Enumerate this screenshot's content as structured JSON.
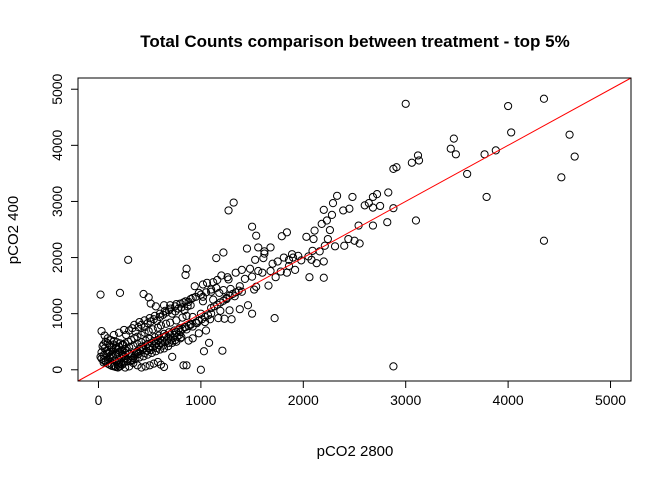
{
  "chart_data": {
    "type": "scatter",
    "title": "Total Counts comparison between treatment - top 5%",
    "xlabel": "pCO2 2800",
    "ylabel": "pCO2 400",
    "xlim": [
      -200,
      5200
    ],
    "ylim": [
      -200,
      5200
    ],
    "x_ticks": [
      "0",
      "1000",
      "2000",
      "3000",
      "4000",
      "5000"
    ],
    "y_ticks": [
      "0",
      "1000",
      "2000",
      "3000",
      "4000",
      "5000"
    ],
    "grid": false,
    "legend": "none",
    "point_color": "#000000",
    "reference_line": {
      "intercept": 0,
      "slope": 1,
      "color": "#ff0000"
    },
    "points": [
      [
        4350,
        4830
      ],
      [
        4000,
        4700
      ],
      [
        3000,
        4740
      ],
      [
        4600,
        4190
      ],
      [
        4030,
        4230
      ],
      [
        3470,
        4120
      ],
      [
        3880,
        3910
      ],
      [
        3770,
        3840
      ],
      [
        3490,
        3840
      ],
      [
        4650,
        3800
      ],
      [
        3440,
        3940
      ],
      [
        3120,
        3820
      ],
      [
        3130,
        3730
      ],
      [
        3060,
        3690
      ],
      [
        2910,
        3610
      ],
      [
        2880,
        3580
      ],
      [
        3600,
        3490
      ],
      [
        4520,
        3430
      ],
      [
        2830,
        3160
      ],
      [
        2720,
        3130
      ],
      [
        2680,
        3080
      ],
      [
        2480,
        3080
      ],
      [
        2330,
        3100
      ],
      [
        2290,
        2970
      ],
      [
        2640,
        2970
      ],
      [
        2600,
        2930
      ],
      [
        2680,
        2890
      ],
      [
        2750,
        2920
      ],
      [
        3790,
        3080
      ],
      [
        2880,
        2880
      ],
      [
        2450,
        2870
      ],
      [
        2280,
        2760
      ],
      [
        2200,
        2850
      ],
      [
        2390,
        2840
      ],
      [
        1320,
        2980
      ],
      [
        1270,
        2840
      ],
      [
        2230,
        2660
      ],
      [
        3100,
        2660
      ],
      [
        2820,
        2630
      ],
      [
        2680,
        2570
      ],
      [
        2540,
        2570
      ],
      [
        2180,
        2600
      ],
      [
        2260,
        2490
      ],
      [
        2110,
        2480
      ],
      [
        1500,
        2550
      ],
      [
        1540,
        2390
      ],
      [
        1840,
        2450
      ],
      [
        2240,
        2330
      ],
      [
        2100,
        2330
      ],
      [
        2030,
        2370
      ],
      [
        1790,
        2380
      ],
      [
        2500,
        2300
      ],
      [
        2400,
        2210
      ],
      [
        2440,
        2330
      ],
      [
        4350,
        2300
      ],
      [
        2550,
        2250
      ],
      [
        1680,
        2180
      ],
      [
        1560,
        2180
      ],
      [
        1450,
        2160
      ],
      [
        2310,
        2200
      ],
      [
        2210,
        2210
      ],
      [
        2090,
        2120
      ],
      [
        1620,
        2110
      ],
      [
        2160,
        2110
      ],
      [
        1890,
        2060
      ],
      [
        1810,
        2000
      ],
      [
        1900,
        2000
      ],
      [
        1860,
        1960
      ],
      [
        1950,
        2030
      ],
      [
        2050,
        2020
      ],
      [
        2080,
        1960
      ],
      [
        1980,
        1950
      ],
      [
        2200,
        1930
      ],
      [
        2130,
        1900
      ],
      [
        1220,
        2090
      ],
      [
        1150,
        1990
      ],
      [
        1620,
        2070
      ],
      [
        1610,
        1990
      ],
      [
        1530,
        1960
      ],
      [
        1750,
        1930
      ],
      [
        1700,
        1890
      ],
      [
        1680,
        1760
      ],
      [
        1860,
        1850
      ],
      [
        1920,
        1780
      ],
      [
        1840,
        1730
      ],
      [
        1780,
        1750
      ],
      [
        1600,
        1730
      ],
      [
        1560,
        1760
      ],
      [
        1480,
        1800
      ],
      [
        1400,
        1780
      ],
      [
        1340,
        1730
      ],
      [
        1260,
        1650
      ],
      [
        1200,
        1680
      ],
      [
        1160,
        1600
      ],
      [
        2200,
        1640
      ],
      [
        2060,
        1650
      ],
      [
        1730,
        1650
      ],
      [
        1500,
        1660
      ],
      [
        1430,
        1620
      ],
      [
        1270,
        1610
      ],
      [
        1120,
        1560
      ],
      [
        1060,
        1550
      ],
      [
        1020,
        1520
      ],
      [
        940,
        1490
      ],
      [
        860,
        1800
      ],
      [
        850,
        1690
      ],
      [
        980,
        1370
      ],
      [
        1660,
        1500
      ],
      [
        1540,
        1480
      ],
      [
        1380,
        1490
      ],
      [
        1290,
        1440
      ],
      [
        1220,
        1420
      ],
      [
        1180,
        1370
      ],
      [
        1100,
        1390
      ],
      [
        1020,
        1300
      ],
      [
        1520,
        1430
      ],
      [
        1400,
        1390
      ],
      [
        1330,
        1310
      ],
      [
        1250,
        1260
      ],
      [
        1120,
        1250
      ],
      [
        1020,
        1220
      ],
      [
        920,
        1280
      ],
      [
        880,
        1210
      ],
      [
        830,
        1200
      ],
      [
        760,
        1170
      ],
      [
        700,
        1150
      ],
      [
        640,
        1150
      ],
      [
        440,
        1350
      ],
      [
        490,
        1290
      ],
      [
        510,
        1180
      ],
      [
        560,
        1130
      ],
      [
        290,
        1960
      ],
      [
        20,
        1340
      ],
      [
        210,
        1370
      ],
      [
        1460,
        1150
      ],
      [
        1380,
        1080
      ],
      [
        1280,
        1060
      ],
      [
        1190,
        1050
      ],
      [
        1100,
        1000
      ],
      [
        1000,
        1000
      ],
      [
        920,
        940
      ],
      [
        860,
        960
      ],
      [
        820,
        930
      ],
      [
        760,
        880
      ],
      [
        700,
        840
      ],
      [
        660,
        820
      ],
      [
        610,
        790
      ],
      [
        580,
        750
      ],
      [
        530,
        720
      ],
      [
        490,
        690
      ],
      [
        450,
        660
      ],
      [
        420,
        620
      ],
      [
        380,
        590
      ],
      [
        350,
        560
      ],
      [
        320,
        530
      ],
      [
        290,
        500
      ],
      [
        260,
        470
      ],
      [
        230,
        440
      ],
      [
        200,
        410
      ],
      [
        170,
        380
      ],
      [
        140,
        350
      ],
      [
        110,
        320
      ],
      [
        80,
        290
      ],
      [
        50,
        260
      ],
      [
        20,
        230
      ],
      [
        1230,
        910
      ],
      [
        1300,
        900
      ],
      [
        1170,
        920
      ],
      [
        1090,
        900
      ],
      [
        1040,
        850
      ],
      [
        960,
        830
      ],
      [
        900,
        800
      ],
      [
        850,
        760
      ],
      [
        790,
        740
      ],
      [
        740,
        700
      ],
      [
        690,
        670
      ],
      [
        640,
        640
      ],
      [
        590,
        610
      ],
      [
        550,
        580
      ],
      [
        500,
        550
      ],
      [
        460,
        520
      ],
      [
        420,
        490
      ],
      [
        380,
        460
      ],
      [
        340,
        430
      ],
      [
        300,
        400
      ],
      [
        260,
        370
      ],
      [
        230,
        340
      ],
      [
        200,
        310
      ],
      [
        170,
        280
      ],
      [
        140,
        250
      ],
      [
        110,
        220
      ],
      [
        90,
        190
      ],
      [
        70,
        160
      ],
      [
        50,
        130
      ],
      [
        1720,
        920
      ],
      [
        1500,
        1000
      ],
      [
        1050,
        700
      ],
      [
        980,
        650
      ],
      [
        920,
        560
      ],
      [
        880,
        520
      ],
      [
        800,
        560
      ],
      [
        760,
        500
      ],
      [
        720,
        480
      ],
      [
        680,
        420
      ],
      [
        640,
        380
      ],
      [
        600,
        360
      ],
      [
        560,
        330
      ],
      [
        520,
        300
      ],
      [
        480,
        270
      ],
      [
        440,
        240
      ],
      [
        400,
        220
      ],
      [
        360,
        190
      ],
      [
        320,
        170
      ],
      [
        280,
        150
      ],
      [
        250,
        130
      ],
      [
        220,
        110
      ],
      [
        190,
        90
      ],
      [
        160,
        70
      ],
      [
        1210,
        340
      ],
      [
        1080,
        480
      ],
      [
        1030,
        330
      ],
      [
        1000,
        0
      ],
      [
        860,
        80
      ],
      [
        830,
        80
      ],
      [
        720,
        230
      ],
      [
        640,
        50
      ],
      [
        610,
        90
      ],
      [
        580,
        140
      ],
      [
        540,
        110
      ],
      [
        500,
        80
      ],
      [
        460,
        60
      ],
      [
        420,
        40
      ],
      [
        380,
        80
      ],
      [
        340,
        120
      ],
      [
        300,
        60
      ],
      [
        260,
        40
      ],
      [
        230,
        90
      ],
      [
        200,
        60
      ],
      [
        2880,
        60
      ],
      [
        30,
        690
      ],
      [
        60,
        610
      ],
      [
        90,
        560
      ],
      [
        120,
        530
      ],
      [
        150,
        510
      ],
      [
        180,
        490
      ],
      [
        210,
        470
      ],
      [
        240,
        450
      ],
      [
        270,
        620
      ],
      [
        300,
        700
      ],
      [
        330,
        740
      ],
      [
        360,
        680
      ],
      [
        390,
        760
      ],
      [
        420,
        800
      ],
      [
        450,
        760
      ],
      [
        480,
        830
      ],
      [
        510,
        860
      ],
      [
        540,
        900
      ],
      [
        570,
        870
      ],
      [
        600,
        940
      ],
      [
        630,
        980
      ],
      [
        660,
        1020
      ],
      [
        690,
        1060
      ],
      [
        720,
        1000
      ],
      [
        750,
        1040
      ],
      [
        780,
        1090
      ],
      [
        810,
        1110
      ],
      [
        840,
        1060
      ],
      [
        870,
        1130
      ],
      [
        900,
        1150
      ],
      [
        40,
        420
      ],
      [
        60,
        380
      ],
      [
        80,
        340
      ],
      [
        100,
        300
      ],
      [
        120,
        260
      ],
      [
        140,
        220
      ],
      [
        160,
        180
      ],
      [
        180,
        150
      ],
      [
        200,
        130
      ],
      [
        220,
        200
      ],
      [
        240,
        260
      ],
      [
        260,
        300
      ],
      [
        280,
        330
      ],
      [
        300,
        290
      ],
      [
        320,
        250
      ],
      [
        340,
        210
      ],
      [
        360,
        270
      ],
      [
        380,
        330
      ],
      [
        400,
        370
      ],
      [
        420,
        410
      ],
      [
        440,
        380
      ],
      [
        460,
        430
      ],
      [
        480,
        460
      ],
      [
        500,
        420
      ],
      [
        520,
        480
      ],
      [
        540,
        510
      ],
      [
        560,
        470
      ],
      [
        580,
        530
      ],
      [
        600,
        560
      ],
      [
        620,
        520
      ],
      [
        640,
        580
      ],
      [
        660,
        610
      ],
      [
        680,
        570
      ],
      [
        700,
        630
      ],
      [
        720,
        660
      ],
      [
        740,
        620
      ],
      [
        760,
        680
      ],
      [
        780,
        710
      ],
      [
        800,
        670
      ],
      [
        820,
        730
      ],
      [
        840,
        760
      ],
      [
        860,
        720
      ],
      [
        880,
        780
      ],
      [
        900,
        810
      ],
      [
        920,
        770
      ],
      [
        950,
        840
      ],
      [
        980,
        870
      ],
      [
        1010,
        900
      ],
      [
        1040,
        940
      ],
      [
        1070,
        970
      ],
      [
        1100,
        1100
      ],
      [
        1130,
        1130
      ],
      [
        1160,
        1160
      ],
      [
        1190,
        1200
      ],
      [
        1220,
        1230
      ],
      [
        1250,
        1280
      ],
      [
        1280,
        1320
      ],
      [
        1310,
        1350
      ],
      [
        1340,
        1380
      ],
      [
        1370,
        1410
      ],
      [
        30,
        200
      ],
      [
        50,
        170
      ],
      [
        70,
        140
      ],
      [
        90,
        110
      ],
      [
        110,
        90
      ],
      [
        130,
        70
      ],
      [
        150,
        60
      ],
      [
        170,
        50
      ],
      [
        190,
        40
      ],
      [
        210,
        60
      ],
      [
        30,
        310
      ],
      [
        50,
        450
      ],
      [
        70,
        500
      ],
      [
        90,
        470
      ],
      [
        110,
        430
      ],
      [
        130,
        400
      ],
      [
        150,
        450
      ],
      [
        170,
        420
      ],
      [
        190,
        360
      ],
      [
        210,
        330
      ],
      [
        230,
        280
      ],
      [
        250,
        240
      ],
      [
        270,
        210
      ],
      [
        290,
        180
      ],
      [
        310,
        150
      ],
      [
        330,
        180
      ],
      [
        350,
        240
      ],
      [
        370,
        300
      ],
      [
        390,
        280
      ],
      [
        410,
        330
      ],
      [
        430,
        360
      ],
      [
        450,
        300
      ],
      [
        470,
        340
      ],
      [
        490,
        380
      ],
      [
        510,
        350
      ],
      [
        530,
        400
      ],
      [
        550,
        430
      ],
      [
        570,
        390
      ],
      [
        590,
        440
      ],
      [
        610,
        470
      ],
      [
        630,
        430
      ],
      [
        650,
        490
      ],
      [
        670,
        520
      ],
      [
        690,
        480
      ],
      [
        710,
        540
      ],
      [
        730,
        570
      ],
      [
        750,
        530
      ],
      [
        770,
        590
      ],
      [
        790,
        620
      ],
      [
        810,
        580
      ],
      [
        150,
        620
      ],
      [
        200,
        660
      ],
      [
        250,
        710
      ],
      [
        350,
        800
      ],
      [
        400,
        850
      ],
      [
        450,
        880
      ],
      [
        500,
        920
      ],
      [
        550,
        960
      ],
      [
        600,
        1000
      ],
      [
        650,
        1050
      ],
      [
        700,
        1090
      ],
      [
        750,
        1130
      ],
      [
        800,
        1180
      ],
      [
        850,
        1220
      ],
      [
        900,
        1260
      ],
      [
        950,
        1300
      ],
      [
        1000,
        1340
      ],
      [
        1050,
        1380
      ],
      [
        1100,
        1430
      ],
      [
        1150,
        1460
      ]
    ]
  }
}
